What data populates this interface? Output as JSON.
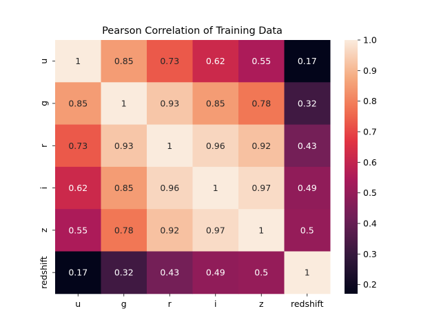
{
  "chart_data": {
    "type": "heatmap",
    "title": "Pearson Correlation of Training Data",
    "x_labels": [
      "u",
      "g",
      "r",
      "i",
      "z",
      "redshift"
    ],
    "y_labels": [
      "u",
      "g",
      "r",
      "i",
      "z",
      "redshift"
    ],
    "values": [
      [
        1,
        0.85,
        0.73,
        0.62,
        0.55,
        0.17
      ],
      [
        0.85,
        1,
        0.93,
        0.85,
        0.78,
        0.32
      ],
      [
        0.73,
        0.93,
        1,
        0.96,
        0.92,
        0.43
      ],
      [
        0.62,
        0.85,
        0.96,
        1,
        0.97,
        0.49
      ],
      [
        0.55,
        0.78,
        0.92,
        0.97,
        1,
        0.5
      ],
      [
        0.17,
        0.32,
        0.43,
        0.49,
        0.5,
        1
      ]
    ],
    "value_labels": [
      [
        "1",
        "0.85",
        "0.73",
        "0.62",
        "0.55",
        "0.17"
      ],
      [
        "0.85",
        "1",
        "0.93",
        "0.85",
        "0.78",
        "0.32"
      ],
      [
        "0.73",
        "0.93",
        "1",
        "0.96",
        "0.92",
        "0.43"
      ],
      [
        "0.62",
        "0.85",
        "0.96",
        "1",
        "0.97",
        "0.49"
      ],
      [
        "0.55",
        "0.78",
        "0.92",
        "0.97",
        "1",
        "0.5"
      ],
      [
        "0.17",
        "0.32",
        "0.43",
        "0.49",
        "0.5",
        "1"
      ]
    ],
    "colorbar": {
      "min": 0.17,
      "max": 1.0,
      "ticks": [
        "0.2",
        "0.3",
        "0.4",
        "0.5",
        "0.6",
        "0.7",
        "0.8",
        "0.9",
        "1.0"
      ],
      "colormap": "rocket"
    },
    "annotations": true,
    "grid": false
  }
}
